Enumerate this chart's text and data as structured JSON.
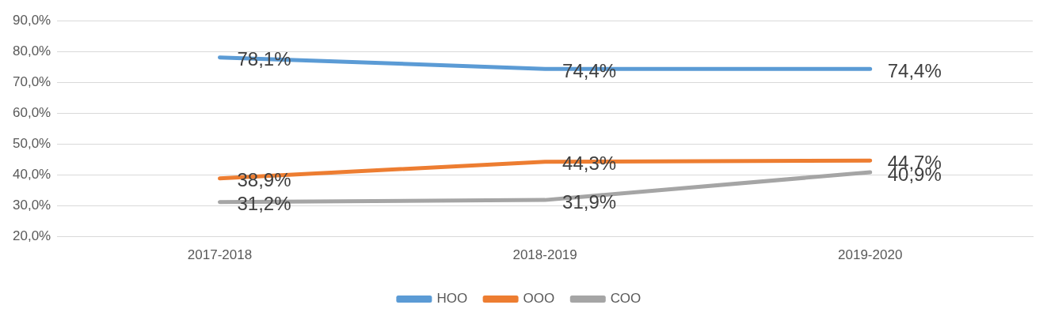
{
  "chart_data": {
    "type": "line",
    "categories": [
      "2017-2018",
      "2018-2019",
      "2019-2020"
    ],
    "series": [
      {
        "name": "НОО",
        "color": "#5b9bd5",
        "values": [
          78.1,
          74.4,
          74.4
        ],
        "value_labels": [
          "78,1%",
          "74,4%",
          "74,4%"
        ]
      },
      {
        "name": "ООО",
        "color": "#ed7d31",
        "values": [
          38.9,
          44.3,
          44.7
        ],
        "value_labels": [
          "38,9%",
          "44,3%",
          "44,7%"
        ]
      },
      {
        "name": "СОО",
        "color": "#a5a5a5",
        "values": [
          31.2,
          31.9,
          40.9
        ],
        "value_labels": [
          "31,2%",
          "31,9%",
          "40,9%"
        ]
      }
    ],
    "ylim": [
      20,
      90
    ],
    "yticks": [
      {
        "value": 20,
        "label": "20,0%"
      },
      {
        "value": 30,
        "label": "30,0%"
      },
      {
        "value": 40,
        "label": "40,0%"
      },
      {
        "value": 50,
        "label": "50,0%"
      },
      {
        "value": 60,
        "label": "60,0%"
      },
      {
        "value": 70,
        "label": "70,0%"
      },
      {
        "value": 80,
        "label": "80,0%"
      },
      {
        "value": 90,
        "label": "90,0%"
      }
    ],
    "grid": "y",
    "legend": "bottom",
    "marker": "none",
    "line_style": "solid"
  }
}
